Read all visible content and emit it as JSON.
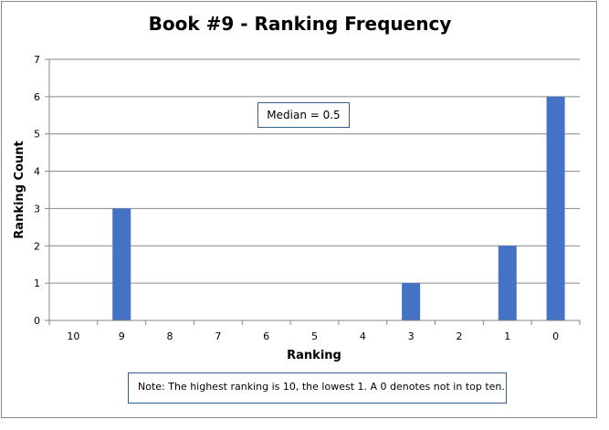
{
  "chart_data": {
    "type": "bar",
    "title": "Book #9 - Ranking Frequency",
    "xlabel": "Ranking",
    "ylabel": "Ranking Count",
    "categories": [
      "10",
      "9",
      "8",
      "7",
      "6",
      "5",
      "4",
      "3",
      "2",
      "1",
      "0"
    ],
    "values": [
      0,
      3,
      0,
      0,
      0,
      0,
      0,
      1,
      0,
      2,
      6
    ],
    "ylim": [
      0,
      7
    ],
    "yticks": [
      "0",
      "1",
      "2",
      "3",
      "4",
      "5",
      "6",
      "7"
    ],
    "grid": true,
    "bar_color": "#4472c4",
    "annotations": {
      "median": "Median = 0.5",
      "note": "Note: The highest ranking is 10, the lowest 1. A 0 denotes not in top ten."
    }
  }
}
